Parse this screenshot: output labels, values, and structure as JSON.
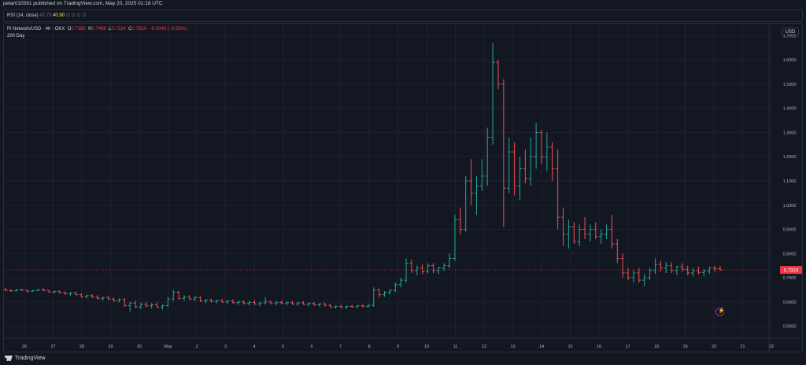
{
  "header": {
    "published_text": "petar010591 published on TradingView.com, May 20, 2025 01:18 UTC"
  },
  "rsi": {
    "title": "RSI (14, close)",
    "value1": "42.73",
    "value2": "40.90",
    "extras": "∅ ∅ ∅ ∅",
    "color1": "#7e57c2",
    "color2": "#ffeb3b"
  },
  "legend": {
    "symbol": "Pi Network/USD · 4h · OKX",
    "open_label": "O",
    "open": "0.7362",
    "high_label": "H",
    "high": "0.7489",
    "low_label": "L",
    "low": "0.7324",
    "close_label": "C",
    "close": "0.7324",
    "change": "−0.0048 (−0.65%)",
    "line2": "200 Day"
  },
  "currency_button": "USD",
  "footer": {
    "brand": "TradingView"
  },
  "chart_data": {
    "type": "ohlc",
    "symbol": "Pi Network/USD",
    "interval": "4h",
    "exchange": "OKX",
    "ylim": [
      0.45,
      1.75
    ],
    "y_ticks": [
      "1.7000",
      "1.6000",
      "1.5000",
      "1.4000",
      "1.3000",
      "1.2000",
      "1.1000",
      "1.0000",
      "0.9000",
      "0.8000",
      "0.7000",
      "0.6000",
      "0.5000"
    ],
    "x_ticks": [
      "26",
      "27",
      "28",
      "29",
      "30",
      "May",
      "2",
      "3",
      "4",
      "5",
      "6",
      "7",
      "8",
      "9",
      "10",
      "11",
      "12",
      "13",
      "14",
      "15",
      "16",
      "17",
      "18",
      "19",
      "20",
      "21",
      "22"
    ],
    "last_price": "0.7324",
    "last_price_value": 0.7324,
    "grid": true,
    "colors": {
      "up": "#26a69a",
      "down": "#ef5350",
      "grid": "#1e222d",
      "axis_text": "#b2b5be",
      "last_price_bg": "#f23645"
    },
    "bars": [
      [
        0.652,
        0.657,
        0.645,
        0.648
      ],
      [
        0.648,
        0.652,
        0.642,
        0.646
      ],
      [
        0.646,
        0.653,
        0.643,
        0.65
      ],
      [
        0.65,
        0.655,
        0.646,
        0.649
      ],
      [
        0.649,
        0.651,
        0.64,
        0.644
      ],
      [
        0.644,
        0.65,
        0.641,
        0.647
      ],
      [
        0.647,
        0.654,
        0.644,
        0.651
      ],
      [
        0.651,
        0.656,
        0.645,
        0.648
      ],
      [
        0.648,
        0.65,
        0.638,
        0.641
      ],
      [
        0.641,
        0.646,
        0.635,
        0.643
      ],
      [
        0.643,
        0.648,
        0.636,
        0.639
      ],
      [
        0.639,
        0.644,
        0.63,
        0.634
      ],
      [
        0.634,
        0.64,
        0.625,
        0.637
      ],
      [
        0.637,
        0.642,
        0.628,
        0.63
      ],
      [
        0.63,
        0.635,
        0.618,
        0.622
      ],
      [
        0.622,
        0.63,
        0.615,
        0.626
      ],
      [
        0.626,
        0.632,
        0.617,
        0.62
      ],
      [
        0.62,
        0.628,
        0.61,
        0.615
      ],
      [
        0.615,
        0.622,
        0.605,
        0.618
      ],
      [
        0.618,
        0.626,
        0.608,
        0.612
      ],
      [
        0.612,
        0.618,
        0.6,
        0.605
      ],
      [
        0.605,
        0.615,
        0.598,
        0.61
      ],
      [
        0.61,
        0.615,
        0.58,
        0.585
      ],
      [
        0.585,
        0.6,
        0.56,
        0.595
      ],
      [
        0.595,
        0.605,
        0.575,
        0.58
      ],
      [
        0.58,
        0.598,
        0.57,
        0.59
      ],
      [
        0.59,
        0.6,
        0.578,
        0.584
      ],
      [
        0.584,
        0.596,
        0.572,
        0.588
      ],
      [
        0.588,
        0.598,
        0.575,
        0.579
      ],
      [
        0.579,
        0.59,
        0.568,
        0.585
      ],
      [
        0.585,
        0.62,
        0.58,
        0.612
      ],
      [
        0.612,
        0.65,
        0.605,
        0.64
      ],
      [
        0.64,
        0.645,
        0.61,
        0.615
      ],
      [
        0.615,
        0.628,
        0.605,
        0.62
      ],
      [
        0.62,
        0.628,
        0.608,
        0.612
      ],
      [
        0.612,
        0.625,
        0.605,
        0.618
      ],
      [
        0.618,
        0.624,
        0.6,
        0.604
      ],
      [
        0.604,
        0.612,
        0.595,
        0.608
      ],
      [
        0.608,
        0.614,
        0.598,
        0.602
      ],
      [
        0.602,
        0.61,
        0.595,
        0.606
      ],
      [
        0.606,
        0.612,
        0.596,
        0.6
      ],
      [
        0.6,
        0.608,
        0.592,
        0.604
      ],
      [
        0.604,
        0.61,
        0.594,
        0.597
      ],
      [
        0.597,
        0.605,
        0.588,
        0.6
      ],
      [
        0.6,
        0.606,
        0.59,
        0.594
      ],
      [
        0.594,
        0.604,
        0.585,
        0.598
      ],
      [
        0.598,
        0.606,
        0.588,
        0.592
      ],
      [
        0.592,
        0.6,
        0.582,
        0.596
      ],
      [
        0.596,
        0.62,
        0.59,
        0.6
      ],
      [
        0.6,
        0.606,
        0.59,
        0.594
      ],
      [
        0.594,
        0.604,
        0.586,
        0.598
      ],
      [
        0.598,
        0.606,
        0.59,
        0.594
      ],
      [
        0.594,
        0.602,
        0.586,
        0.597
      ],
      [
        0.597,
        0.604,
        0.588,
        0.592
      ],
      [
        0.592,
        0.6,
        0.585,
        0.596
      ],
      [
        0.596,
        0.604,
        0.588,
        0.59
      ],
      [
        0.59,
        0.598,
        0.582,
        0.594
      ],
      [
        0.594,
        0.6,
        0.584,
        0.588
      ],
      [
        0.588,
        0.596,
        0.58,
        0.592
      ],
      [
        0.592,
        0.598,
        0.582,
        0.586
      ],
      [
        0.586,
        0.594,
        0.575,
        0.579
      ],
      [
        0.579,
        0.586,
        0.572,
        0.582
      ],
      [
        0.582,
        0.588,
        0.574,
        0.578
      ],
      [
        0.578,
        0.586,
        0.572,
        0.582
      ],
      [
        0.582,
        0.588,
        0.576,
        0.58
      ],
      [
        0.58,
        0.588,
        0.574,
        0.584
      ],
      [
        0.584,
        0.59,
        0.578,
        0.582
      ],
      [
        0.582,
        0.59,
        0.576,
        0.586
      ],
      [
        0.586,
        0.66,
        0.58,
        0.65
      ],
      [
        0.65,
        0.655,
        0.62,
        0.63
      ],
      [
        0.63,
        0.645,
        0.622,
        0.64
      ],
      [
        0.64,
        0.652,
        0.63,
        0.648
      ],
      [
        0.648,
        0.68,
        0.64,
        0.672
      ],
      [
        0.672,
        0.7,
        0.66,
        0.69
      ],
      [
        0.69,
        0.78,
        0.68,
        0.76
      ],
      [
        0.76,
        0.775,
        0.72,
        0.73
      ],
      [
        0.73,
        0.75,
        0.71,
        0.74
      ],
      [
        0.74,
        0.755,
        0.715,
        0.725
      ],
      [
        0.725,
        0.76,
        0.718,
        0.75
      ],
      [
        0.75,
        0.76,
        0.72,
        0.73
      ],
      [
        0.73,
        0.745,
        0.715,
        0.74
      ],
      [
        0.74,
        0.76,
        0.728,
        0.75
      ],
      [
        0.75,
        0.8,
        0.74,
        0.78
      ],
      [
        0.78,
        0.96,
        0.77,
        0.94
      ],
      [
        0.94,
        0.99,
        0.88,
        0.9
      ],
      [
        0.9,
        1.12,
        0.89,
        1.1
      ],
      [
        1.1,
        1.19,
        1.0,
        1.05
      ],
      [
        1.05,
        1.12,
        0.96,
        1.08
      ],
      [
        1.08,
        1.19,
        1.06,
        1.12
      ],
      [
        1.12,
        1.32,
        1.08,
        1.28
      ],
      [
        1.28,
        1.67,
        1.25,
        1.59
      ],
      [
        1.59,
        1.6,
        1.48,
        1.5
      ],
      [
        1.5,
        1.52,
        0.91,
        1.07
      ],
      [
        1.07,
        1.28,
        1.05,
        1.22
      ],
      [
        1.22,
        1.26,
        1.04,
        1.08
      ],
      [
        1.08,
        1.2,
        1.02,
        1.15
      ],
      [
        1.15,
        1.23,
        1.09,
        1.11
      ],
      [
        1.11,
        1.28,
        1.08,
        1.2
      ],
      [
        1.2,
        1.34,
        1.15,
        1.3
      ],
      [
        1.3,
        1.31,
        1.17,
        1.2
      ],
      [
        1.2,
        1.3,
        1.14,
        1.24
      ],
      [
        1.24,
        1.26,
        1.1,
        1.15
      ],
      [
        1.15,
        1.23,
        0.9,
        0.95
      ],
      [
        0.95,
        0.99,
        0.83,
        0.88
      ],
      [
        0.88,
        0.94,
        0.82,
        0.91
      ],
      [
        0.91,
        0.93,
        0.84,
        0.85
      ],
      [
        0.85,
        0.92,
        0.83,
        0.9
      ],
      [
        0.9,
        0.95,
        0.86,
        0.88
      ],
      [
        0.88,
        0.92,
        0.85,
        0.9
      ],
      [
        0.9,
        0.93,
        0.86,
        0.87
      ],
      [
        0.87,
        0.9,
        0.84,
        0.88
      ],
      [
        0.88,
        0.92,
        0.86,
        0.9
      ],
      [
        0.9,
        0.96,
        0.82,
        0.84
      ],
      [
        0.84,
        0.86,
        0.76,
        0.78
      ],
      [
        0.78,
        0.8,
        0.7,
        0.72
      ],
      [
        0.72,
        0.74,
        0.69,
        0.7
      ],
      [
        0.7,
        0.73,
        0.68,
        0.72
      ],
      [
        0.72,
        0.74,
        0.68,
        0.69
      ],
      [
        0.69,
        0.715,
        0.665,
        0.7
      ],
      [
        0.7,
        0.74,
        0.69,
        0.73
      ],
      [
        0.73,
        0.78,
        0.715,
        0.755
      ],
      [
        0.755,
        0.77,
        0.725,
        0.74
      ],
      [
        0.74,
        0.765,
        0.72,
        0.75
      ],
      [
        0.75,
        0.765,
        0.72,
        0.73
      ],
      [
        0.73,
        0.75,
        0.71,
        0.745
      ],
      [
        0.745,
        0.76,
        0.725,
        0.735
      ],
      [
        0.735,
        0.75,
        0.71,
        0.72
      ],
      [
        0.72,
        0.74,
        0.705,
        0.73
      ],
      [
        0.73,
        0.745,
        0.715,
        0.722
      ],
      [
        0.722,
        0.735,
        0.705,
        0.728
      ],
      [
        0.728,
        0.745,
        0.715,
        0.74
      ],
      [
        0.74,
        0.749,
        0.725,
        0.737
      ],
      [
        0.737,
        0.749,
        0.732,
        0.7324
      ]
    ]
  }
}
